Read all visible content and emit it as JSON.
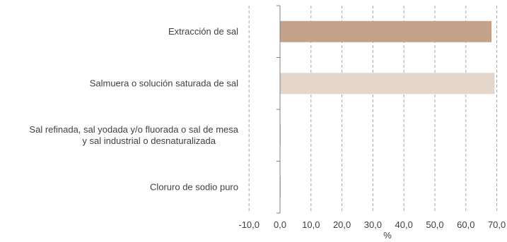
{
  "chart_data": {
    "type": "bar",
    "orientation": "horizontal",
    "categories": [
      [
        "Extracción de sal"
      ],
      [
        "Salmuera o solución saturada de sal"
      ],
      [
        "Sal refinada, sal yodada y/o fluorada o sal de mesa",
        "y sal industrial o desnaturalizada"
      ],
      [
        "Cloruro de sodio puro"
      ]
    ],
    "values": [
      68.3,
      69.3,
      0.2,
      0.1
    ],
    "bar_colors": [
      "#c4a28a",
      "#e5d6cc",
      "#c8c8c8",
      "#c8c8c8"
    ],
    "xlabel": "%",
    "xlim": [
      -10,
      70
    ],
    "xticks": [
      -10,
      0,
      10,
      20,
      30,
      40,
      50,
      60,
      70
    ],
    "xtick_labels": [
      "-10,0",
      "0,0",
      "10,0",
      "20,0",
      "30,0",
      "40,0",
      "50,0",
      "60,0",
      "70,0"
    ],
    "grid": "vertical-dashed",
    "grid_color": "#a6a6a6",
    "axis_color": "#808080",
    "legend": "none"
  }
}
